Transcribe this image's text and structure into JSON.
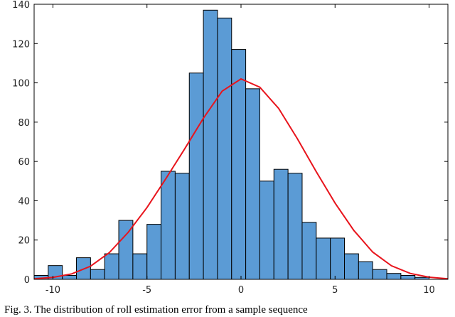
{
  "caption": "Fig. 3.   The distribution of roll estimation error from a sample sequence",
  "chart_data": {
    "type": "bar",
    "title": "",
    "xlabel": "",
    "ylabel": "",
    "xlim": [
      -11,
      11
    ],
    "ylim": [
      0,
      140
    ],
    "xticks": [
      -10,
      -5,
      0,
      5,
      10
    ],
    "yticks": [
      0,
      20,
      40,
      60,
      80,
      100,
      120,
      140
    ],
    "grid": false,
    "bin_width": 0.75,
    "bin_start": -11,
    "bars": [
      2,
      7,
      2,
      11,
      5,
      13,
      30,
      13,
      28,
      55,
      54,
      105,
      137,
      133,
      117,
      97,
      50,
      56,
      54,
      29,
      21,
      21,
      13,
      9,
      5,
      3,
      2,
      1
    ],
    "bar_color": "#5b9bd5",
    "curve": {
      "type": "line",
      "color": "#e8141c",
      "x": [
        -11,
        -10,
        -9,
        -8,
        -7,
        -6,
        -5,
        -4,
        -3,
        -2,
        -1,
        0,
        1,
        2,
        3,
        4,
        5,
        6,
        7,
        8,
        9,
        10,
        11
      ],
      "y": [
        0.3,
        1.0,
        2.8,
        6.7,
        13.6,
        23.9,
        36.5,
        51.2,
        66.3,
        82.0,
        95.8,
        102.0,
        97.8,
        87.0,
        71.5,
        54.8,
        38.8,
        24.9,
        13.9,
        6.9,
        3.0,
        1.1,
        0.3
      ]
    }
  }
}
